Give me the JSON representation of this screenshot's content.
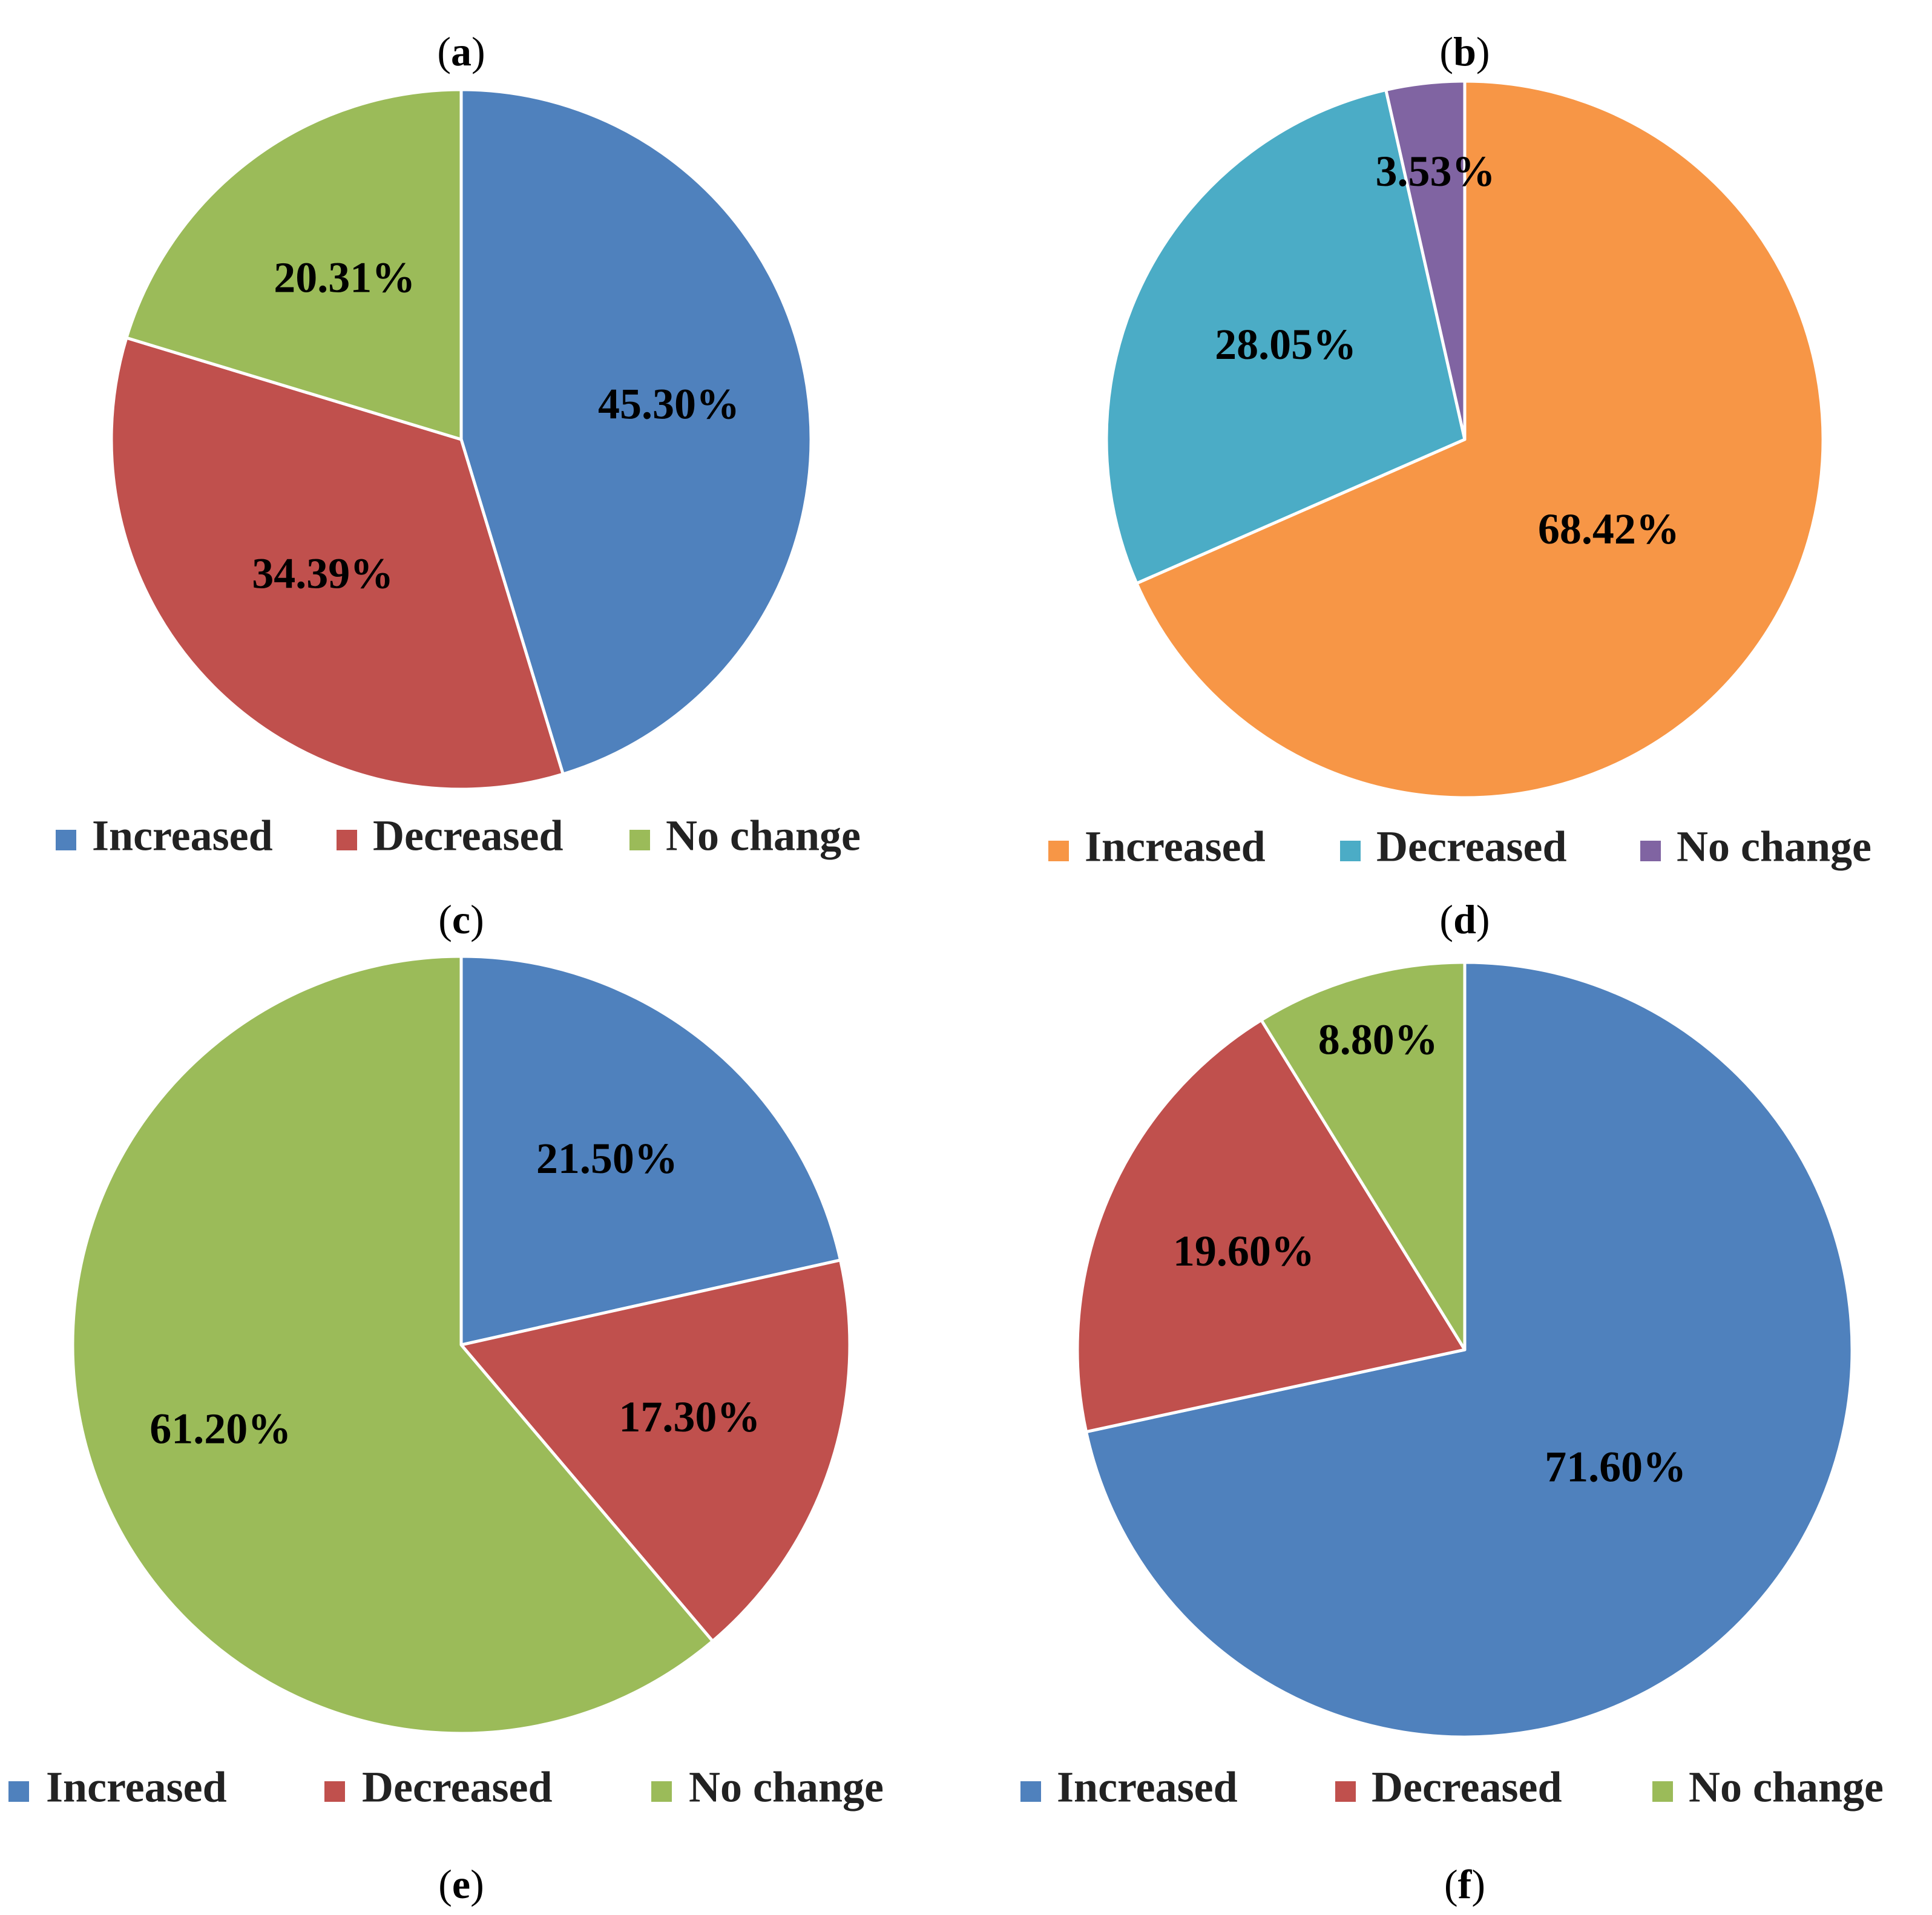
{
  "chart_data": [
    {
      "type": "pie",
      "panel": "a",
      "title": "(a)",
      "categories": [
        "Increased",
        "Decreased",
        "No change"
      ],
      "values": [
        45.3,
        34.39,
        20.31
      ],
      "labels": [
        "45.30%",
        "34.39%",
        "20.31%"
      ],
      "colors": [
        "#4F81BD",
        "#C0504D",
        "#9BBB59"
      ],
      "legend": "bottom"
    },
    {
      "type": "pie",
      "panel": "b",
      "title": "(b)",
      "categories": [
        "Increased",
        "Decreased",
        "No change"
      ],
      "values": [
        68.42,
        28.05,
        3.53
      ],
      "labels": [
        "68.42%",
        "28.05%",
        "3.53%"
      ],
      "colors": [
        "#F79646",
        "#4BACC6",
        "#8064A2"
      ],
      "legend": "bottom"
    },
    {
      "type": "pie",
      "panel": "c",
      "title": "(c)",
      "categories": [
        "Increased",
        "Decreased",
        "No change"
      ],
      "values": [
        21.5,
        17.3,
        61.2
      ],
      "labels": [
        "21.50%",
        "17.30%",
        "61.20%"
      ],
      "colors": [
        "#4F81BD",
        "#C0504D",
        "#9BBB59"
      ],
      "legend": "bottom"
    },
    {
      "type": "pie",
      "panel": "d",
      "title": "(d)",
      "categories": [
        "Increased",
        "Decreased",
        "No change"
      ],
      "values": [
        71.6,
        19.6,
        8.8
      ],
      "labels": [
        "71.60%",
        "19.60%",
        "8.80%"
      ],
      "colors": [
        "#4F81BD",
        "#C0504D",
        "#9BBB59"
      ],
      "legend": "bottom"
    }
  ],
  "bottom_labels": [
    "(e)",
    "(f)"
  ]
}
